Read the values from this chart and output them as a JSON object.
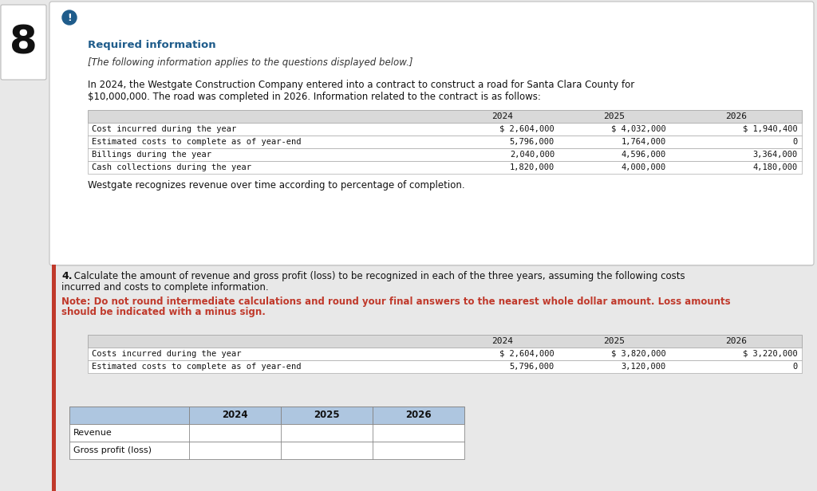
{
  "page_number": "8",
  "exclamation_icon_color": "#1f5c8b",
  "required_info_title": "Required information",
  "required_info_title_color": "#1f5c8b",
  "italic_subtitle": "[The following information applies to the questions displayed below.]",
  "paragraph_line1": "In 2024, the Westgate Construction Company entered into a contract to construct a road for Santa Clara County for",
  "paragraph_line2": "$10,000,000. The road was completed in 2026. Information related to the contract is as follows:",
  "table1_header": [
    "",
    "2024",
    "2025",
    "2026"
  ],
  "table1_rows": [
    [
      "Cost incurred during the year",
      "$ 2,604,000",
      "$ 4,032,000",
      "$ 1,940,400"
    ],
    [
      "Estimated costs to complete as of year-end",
      "5,796,000",
      "1,764,000",
      "0"
    ],
    [
      "Billings during the year",
      "2,040,000",
      "4,596,000",
      "3,364,000"
    ],
    [
      "Cash collections during the year",
      "1,820,000",
      "4,000,000",
      "4,180,000"
    ]
  ],
  "table1_header_bg": "#d9d9d9",
  "westgate_note": "Westgate recognizes revenue over time according to percentage of completion.",
  "question_bold": "4.",
  "question_text": " Calculate the amount of revenue and gross profit (loss) to be recognized in each of the three years, assuming the following costs",
  "question_text2": "incurred and costs to complete information.",
  "note_red_line1": "Note: Do not round intermediate calculations and round your final answers to the nearest whole dollar amount. Loss amounts",
  "note_red_line2": "should be indicated with a minus sign.",
  "table2_header": [
    "",
    "2024",
    "2025",
    "2026"
  ],
  "table2_rows": [
    [
      "Costs incurred during the year",
      "$ 2,604,000",
      "$ 3,820,000",
      "$ 3,220,000"
    ],
    [
      "Estimated costs to complete as of year-end",
      "5,796,000",
      "3,120,000",
      "0"
    ]
  ],
  "table2_header_bg": "#d9d9d9",
  "table3_header": [
    "",
    "2024",
    "2025",
    "2026"
  ],
  "table3_rows": [
    [
      "Revenue",
      "",
      "",
      ""
    ],
    [
      "Gross profit (loss)",
      "",
      "",
      ""
    ]
  ],
  "table3_header_bg": "#aec6e0",
  "page_bg": "#e8e8e8",
  "left_panel_bg": "#ffffff",
  "main_box_bg": "#ffffff",
  "main_box_border": "#c0c0c0",
  "red_accent_color": "#c0392b",
  "monospace_font": "DejaVu Sans Mono",
  "normal_font": "DejaVu Sans",
  "divider_color": "#cccccc"
}
